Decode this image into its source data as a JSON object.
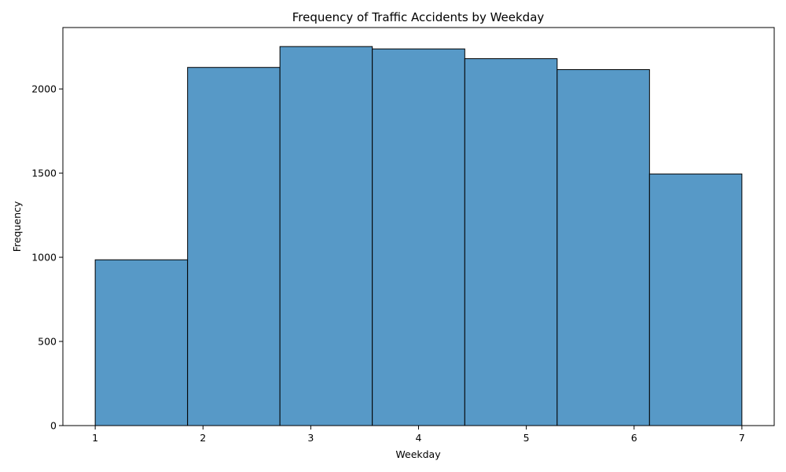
{
  "chart_data": {
    "type": "bar",
    "subtype": "histogram",
    "title": "Frequency of Traffic Accidents by Weekday",
    "xlabel": "Weekday",
    "ylabel": "Frequency",
    "bins": [
      {
        "start": 1.0,
        "end": 1.857,
        "value": 985
      },
      {
        "start": 1.857,
        "end": 2.714,
        "value": 2128
      },
      {
        "start": 2.714,
        "end": 3.571,
        "value": 2252
      },
      {
        "start": 3.571,
        "end": 4.429,
        "value": 2238
      },
      {
        "start": 4.429,
        "end": 5.286,
        "value": 2180
      },
      {
        "start": 5.286,
        "end": 6.143,
        "value": 2115
      },
      {
        "start": 6.143,
        "end": 7.0,
        "value": 1495
      }
    ],
    "xlim": [
      0.7,
      7.3
    ],
    "ylim": [
      0,
      2365
    ],
    "xticks": [
      "1",
      "2",
      "3",
      "4",
      "5",
      "6",
      "7"
    ],
    "yticks": [
      "0",
      "500",
      "1000",
      "1500",
      "2000"
    ],
    "grid": false,
    "colors": {
      "bar_fill": "#5799c7",
      "bar_edge": "#000000"
    }
  }
}
